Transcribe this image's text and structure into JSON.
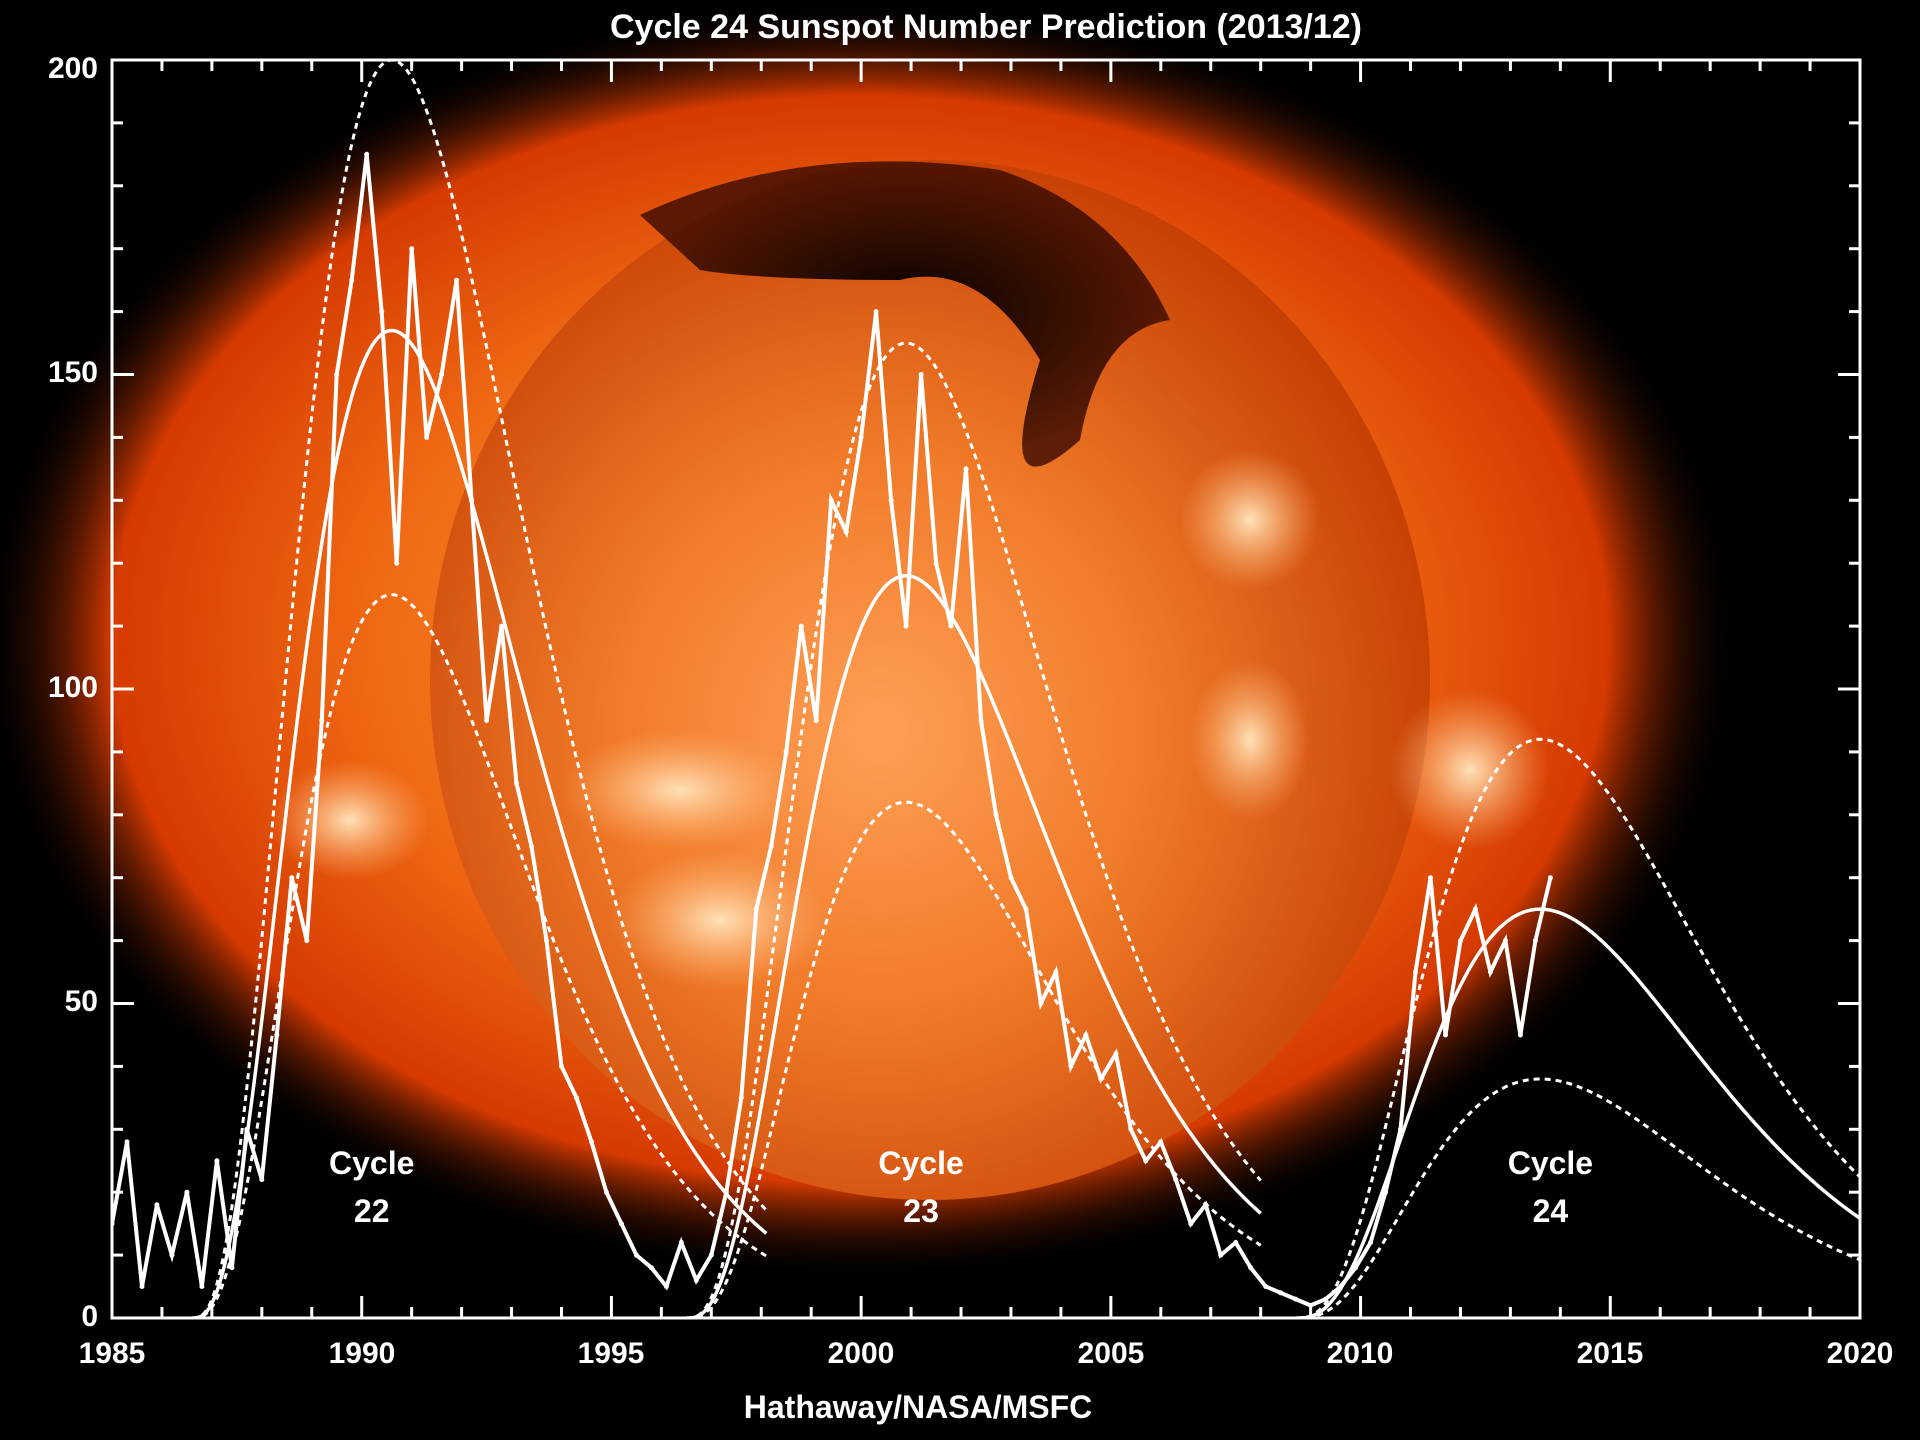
{
  "chart_data": {
    "type": "line",
    "title": "Cycle 24 Sunspot Number Prediction (2013/12)",
    "credit": "Hathaway/NASA/MSFC",
    "xlabel": "",
    "ylabel": "",
    "xlim": [
      1985,
      2020
    ],
    "ylim": [
      0,
      200
    ],
    "x_ticks": [
      "1985",
      "1990",
      "1995",
      "2000",
      "2005",
      "2010",
      "2015",
      "2020"
    ],
    "y_ticks": [
      "0",
      "50",
      "100",
      "150",
      "200"
    ],
    "grid": false,
    "background": "solar x-ray image (orange/red sun on black)",
    "colors": {
      "line": "#ffffff",
      "frame": "#ffffff",
      "sun_core": "#f58a3c",
      "sun_edge": "#c82a00"
    },
    "cycle_labels": [
      {
        "line1": "Cycle",
        "line2": "22",
        "x": 1990.2,
        "y": 20
      },
      {
        "line1": "Cycle",
        "line2": "23",
        "x": 2001.2,
        "y": 20
      },
      {
        "line1": "Cycle",
        "line2": "24",
        "x": 2013.8,
        "y": 20
      }
    ],
    "prediction_curves": [
      {
        "cycle": 22,
        "start": 1986.6,
        "peak_year": 1990.6,
        "upper": 200,
        "mid": 157,
        "lower": 115,
        "decay": 4.6
      },
      {
        "cycle": 23,
        "start": 1996.5,
        "peak_year": 2000.9,
        "upper": 155,
        "mid": 118,
        "lower": 82,
        "decay": 5.2
      },
      {
        "cycle": 24,
        "start": 2008.7,
        "peak_year": 2013.6,
        "upper": 92,
        "mid": 65,
        "lower": 38,
        "decay": 4.8
      }
    ],
    "series": [
      {
        "name": "Monthly sunspot number",
        "x": [
          1985.0,
          1985.3,
          1985.6,
          1985.9,
          1986.2,
          1986.5,
          1986.8,
          1987.1,
          1987.4,
          1987.7,
          1988.0,
          1988.3,
          1988.6,
          1988.9,
          1989.2,
          1989.5,
          1989.8,
          1990.1,
          1990.4,
          1990.7,
          1991.0,
          1991.3,
          1991.6,
          1991.9,
          1992.2,
          1992.5,
          1992.8,
          1993.1,
          1993.4,
          1993.7,
          1994.0,
          1994.3,
          1994.6,
          1994.9,
          1995.2,
          1995.5,
          1995.8,
          1996.1,
          1996.4,
          1996.7,
          1997.0,
          1997.3,
          1997.6,
          1997.9,
          1998.2,
          1998.5,
          1998.8,
          1999.1,
          1999.4,
          1999.7,
          2000.0,
          2000.3,
          2000.6,
          2000.9,
          2001.2,
          2001.5,
          2001.8,
          2002.1,
          2002.4,
          2002.7,
          2003.0,
          2003.3,
          2003.6,
          2003.9,
          2004.2,
          2004.5,
          2004.8,
          2005.1,
          2005.4,
          2005.7,
          2006.0,
          2006.3,
          2006.6,
          2006.9,
          2007.2,
          2007.5,
          2007.8,
          2008.1,
          2008.4,
          2008.7,
          2009.0,
          2009.3,
          2009.6,
          2009.9,
          2010.2,
          2010.5,
          2010.8,
          2011.1,
          2011.4,
          2011.7,
          2012.0,
          2012.3,
          2012.6,
          2012.9,
          2013.2,
          2013.5,
          2013.8
        ],
        "values": [
          15,
          28,
          5,
          18,
          10,
          20,
          5,
          25,
          8,
          30,
          22,
          45,
          70,
          60,
          95,
          150,
          165,
          185,
          160,
          120,
          170,
          140,
          150,
          165,
          130,
          95,
          110,
          85,
          75,
          60,
          40,
          35,
          28,
          20,
          15,
          10,
          8,
          5,
          12,
          6,
          10,
          20,
          35,
          65,
          75,
          90,
          110,
          95,
          130,
          125,
          140,
          160,
          130,
          110,
          150,
          120,
          110,
          135,
          95,
          80,
          70,
          65,
          50,
          55,
          40,
          45,
          38,
          42,
          30,
          25,
          28,
          22,
          15,
          18,
          10,
          12,
          8,
          5,
          4,
          3,
          2,
          3,
          5,
          8,
          12,
          20,
          30,
          55,
          70,
          45,
          60,
          65,
          55,
          60,
          45,
          60,
          70
        ]
      }
    ]
  }
}
